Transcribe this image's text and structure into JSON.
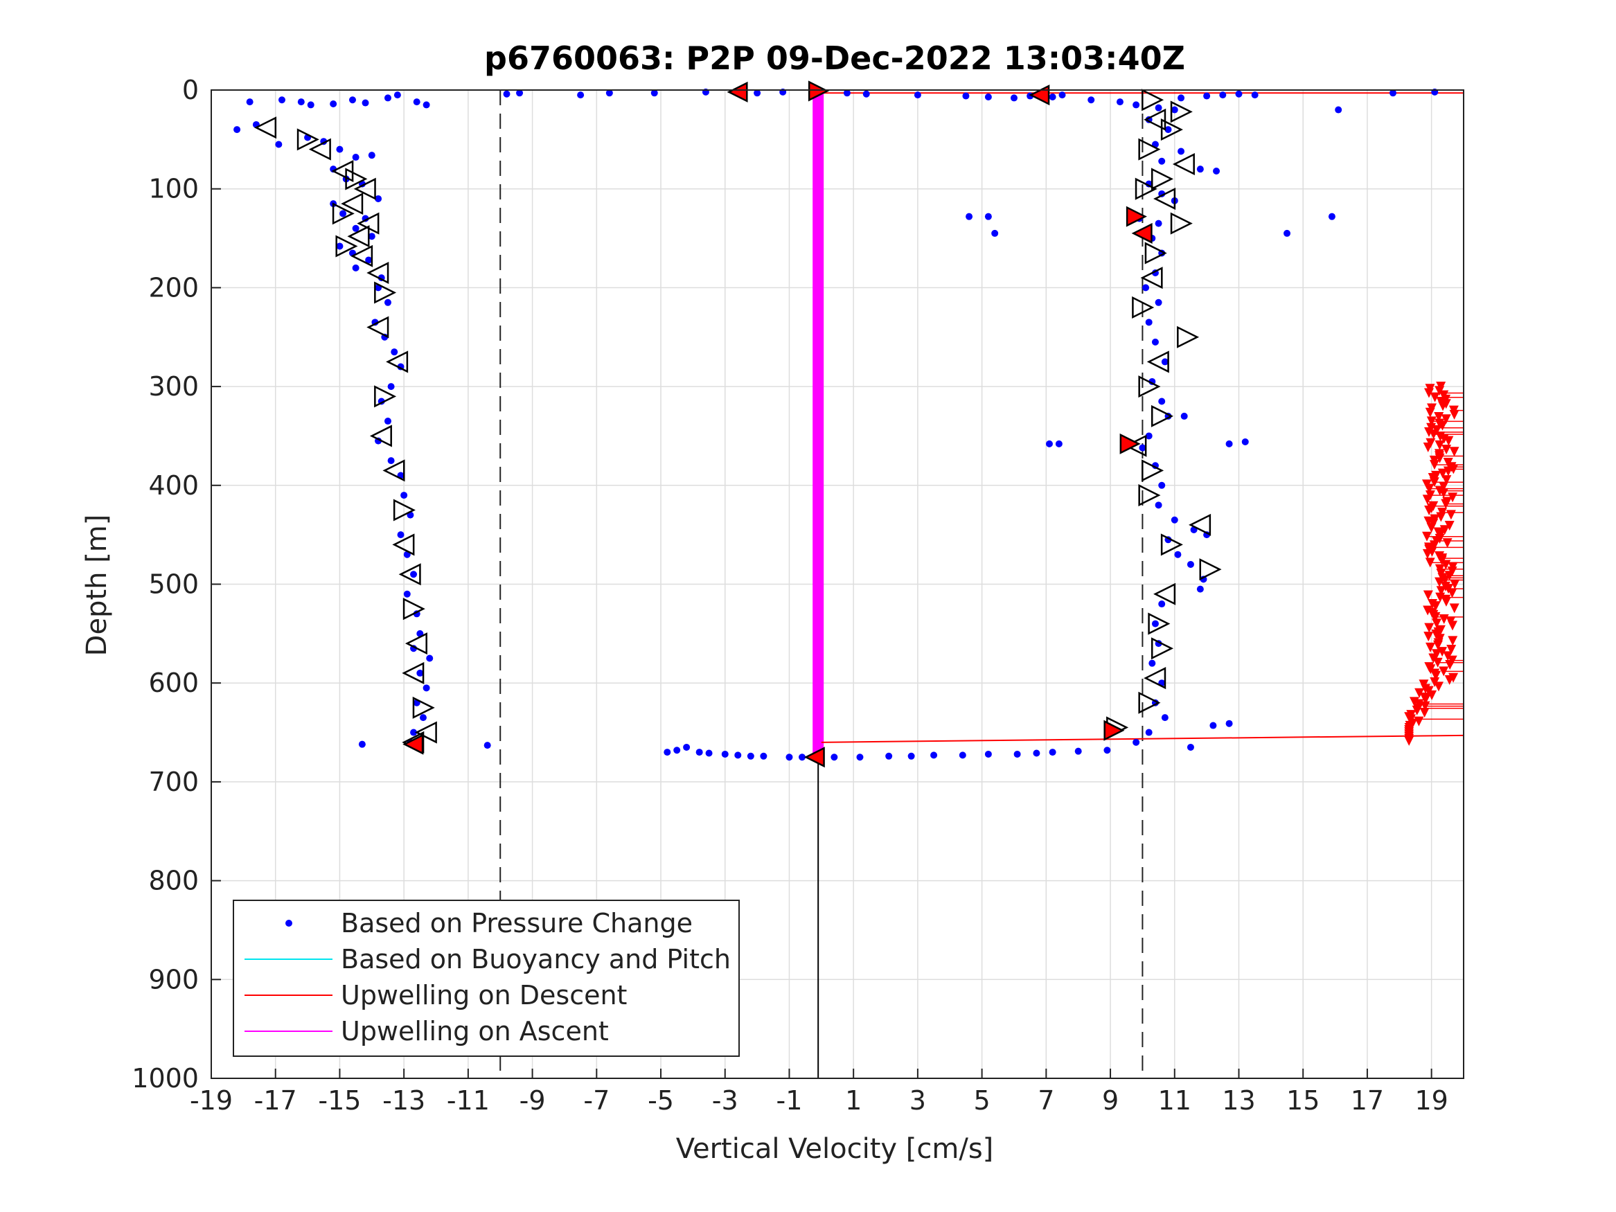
{
  "chart_data": {
    "type": "scatter",
    "title": "p6760063: P2P 09-Dec-2022 13:03:40Z",
    "xlabel": "Vertical Velocity [cm/s]",
    "ylabel": "Depth [m]",
    "xlim": [
      -19,
      20
    ],
    "ylim": [
      0,
      1000
    ],
    "y_reversed": true,
    "grid": true,
    "xticks": [
      -19,
      -17,
      -15,
      -13,
      -11,
      -9,
      -7,
      -5,
      -3,
      -1,
      1,
      3,
      5,
      7,
      9,
      11,
      13,
      15,
      17,
      19
    ],
    "yticks": [
      0,
      100,
      200,
      300,
      400,
      500,
      600,
      700,
      800,
      900,
      1000
    ],
    "legend": {
      "placement": "bottom-left",
      "entries": [
        {
          "label": "Based on Pressure Change",
          "color": "#0000ff",
          "marker": "dot"
        },
        {
          "label": "Based on Buoyancy and Pitch",
          "color": "#00e5ee",
          "marker": "line"
        },
        {
          "label": "Upwelling on Descent",
          "color": "#ff0000",
          "marker": "line"
        },
        {
          "label": "Upwelling on Ascent",
          "color": "#ff00ff",
          "marker": "line"
        }
      ]
    },
    "reference_lines": {
      "dashed_x": [
        -10,
        10
      ],
      "ascent_upwelling_x": -0.1,
      "ascent_upwelling_depth": [
        0,
        675
      ],
      "solid_vertical_x": -0.1,
      "solid_vertical_depth": [
        675,
        1000
      ],
      "descent_upwelling_depth": [
        3,
        660
      ],
      "descent_upwelling_x_range": [
        0,
        20
      ]
    },
    "pressure_change_descent": [
      [
        -18.2,
        40
      ],
      [
        -17.6,
        35
      ],
      [
        -17.8,
        12
      ],
      [
        -16.8,
        10
      ],
      [
        -16.2,
        12
      ],
      [
        -15.9,
        15
      ],
      [
        -15.2,
        14
      ],
      [
        -14.6,
        10
      ],
      [
        -14.2,
        13
      ],
      [
        -13.5,
        8
      ],
      [
        -13.2,
        5
      ],
      [
        -12.6,
        12
      ],
      [
        -12.3,
        15
      ],
      [
        -16.9,
        55
      ],
      [
        -16.0,
        48
      ],
      [
        -15.5,
        52
      ],
      [
        -15.0,
        60
      ],
      [
        -14.5,
        68
      ],
      [
        -14.0,
        66
      ],
      [
        -15.2,
        80
      ],
      [
        -14.8,
        90
      ],
      [
        -14.3,
        95
      ],
      [
        -13.8,
        110
      ],
      [
        -15.2,
        115
      ],
      [
        -14.9,
        125
      ],
      [
        -14.2,
        130
      ],
      [
        -14.5,
        140
      ],
      [
        -14.0,
        148
      ],
      [
        -15.0,
        158
      ],
      [
        -14.6,
        165
      ],
      [
        -14.1,
        172
      ],
      [
        -14.5,
        180
      ],
      [
        -13.7,
        190
      ],
      [
        -13.8,
        200
      ],
      [
        -13.5,
        215
      ],
      [
        -13.9,
        235
      ],
      [
        -13.6,
        250
      ],
      [
        -13.3,
        265
      ],
      [
        -13.1,
        280
      ],
      [
        -13.4,
        300
      ],
      [
        -13.7,
        315
      ],
      [
        -13.5,
        335
      ],
      [
        -13.8,
        355
      ],
      [
        -13.4,
        375
      ],
      [
        -13.1,
        390
      ],
      [
        -13.0,
        410
      ],
      [
        -12.8,
        430
      ],
      [
        -13.1,
        450
      ],
      [
        -12.9,
        470
      ],
      [
        -12.7,
        490
      ],
      [
        -12.9,
        510
      ],
      [
        -12.6,
        530
      ],
      [
        -12.5,
        550
      ],
      [
        -12.7,
        565
      ],
      [
        -12.2,
        575
      ],
      [
        -12.5,
        590
      ],
      [
        -12.3,
        605
      ],
      [
        -12.6,
        620
      ],
      [
        -12.4,
        635
      ],
      [
        -12.7,
        650
      ],
      [
        -12.8,
        660
      ],
      [
        -14.3,
        662
      ],
      [
        -10.4,
        663
      ]
    ],
    "pressure_change_ascent": [
      [
        -9.8,
        4
      ],
      [
        -9.4,
        3
      ],
      [
        -7.5,
        5
      ],
      [
        -6.6,
        3
      ],
      [
        -5.2,
        3
      ],
      [
        -3.6,
        2
      ],
      [
        -2.0,
        3
      ],
      [
        -1.2,
        2
      ],
      [
        0.8,
        3
      ],
      [
        1.4,
        4
      ],
      [
        3.0,
        5
      ],
      [
        4.5,
        6
      ],
      [
        5.2,
        7
      ],
      [
        6.0,
        8
      ],
      [
        7.2,
        7
      ],
      [
        8.4,
        10
      ],
      [
        9.3,
        12
      ],
      [
        9.8,
        15
      ],
      [
        10.5,
        18
      ],
      [
        11.0,
        20
      ],
      [
        10.2,
        30
      ],
      [
        10.8,
        40
      ],
      [
        10.4,
        55
      ],
      [
        11.2,
        62
      ],
      [
        10.6,
        72
      ],
      [
        11.8,
        80
      ],
      [
        12.3,
        82
      ],
      [
        10.2,
        95
      ],
      [
        10.6,
        105
      ],
      [
        11.0,
        112
      ],
      [
        9.9,
        130
      ],
      [
        10.5,
        135
      ],
      [
        10.3,
        150
      ],
      [
        10.6,
        165
      ],
      [
        10.4,
        185
      ],
      [
        10.1,
        200
      ],
      [
        10.5,
        215
      ],
      [
        10.2,
        235
      ],
      [
        10.4,
        255
      ],
      [
        10.7,
        275
      ],
      [
        10.3,
        295
      ],
      [
        10.6,
        315
      ],
      [
        10.8,
        330
      ],
      [
        11.3,
        330
      ],
      [
        10.2,
        350
      ],
      [
        10.0,
        362
      ],
      [
        10.4,
        380
      ],
      [
        10.6,
        400
      ],
      [
        10.5,
        420
      ],
      [
        11.0,
        435
      ],
      [
        11.6,
        445
      ],
      [
        12.0,
        450
      ],
      [
        10.8,
        455
      ],
      [
        11.1,
        470
      ],
      [
        11.5,
        480
      ],
      [
        11.9,
        495
      ],
      [
        11.8,
        505
      ],
      [
        10.6,
        520
      ],
      [
        10.4,
        540
      ],
      [
        10.5,
        560
      ],
      [
        10.3,
        580
      ],
      [
        10.6,
        600
      ],
      [
        10.4,
        620
      ],
      [
        10.7,
        635
      ],
      [
        10.2,
        650
      ],
      [
        9.8,
        660
      ],
      [
        11.5,
        665
      ],
      [
        12.2,
        643
      ],
      [
        12.7,
        641
      ],
      [
        4.6,
        128
      ],
      [
        5.2,
        128
      ],
      [
        5.4,
        145
      ],
      [
        7.1,
        358
      ],
      [
        7.4,
        358
      ],
      [
        12.7,
        358
      ],
      [
        13.2,
        356
      ],
      [
        14.5,
        145
      ],
      [
        15.9,
        128
      ],
      [
        16.1,
        20
      ],
      [
        17.8,
        3
      ],
      [
        19.1,
        2
      ],
      [
        11.2,
        8
      ],
      [
        12.0,
        6
      ],
      [
        12.5,
        5
      ],
      [
        13.0,
        4
      ],
      [
        13.5,
        5
      ],
      [
        7.5,
        5
      ],
      [
        6.5,
        6
      ],
      [
        -4.8,
        670
      ],
      [
        -4.5,
        668
      ],
      [
        -4.2,
        665
      ],
      [
        -3.8,
        670
      ],
      [
        -3.5,
        671
      ],
      [
        -3.0,
        672
      ],
      [
        -2.6,
        673
      ],
      [
        -2.2,
        674
      ],
      [
        -1.8,
        674
      ],
      [
        -1.0,
        675
      ],
      [
        -0.6,
        675
      ],
      [
        0.4,
        675
      ],
      [
        1.2,
        675
      ],
      [
        2.1,
        674
      ],
      [
        2.8,
        674
      ],
      [
        3.5,
        673
      ],
      [
        4.4,
        673
      ],
      [
        5.2,
        672
      ],
      [
        6.1,
        672
      ],
      [
        6.7,
        671
      ],
      [
        7.2,
        670
      ],
      [
        8.0,
        669
      ],
      [
        8.9,
        668
      ]
    ],
    "triangle_markers": [
      [
        -17.3,
        38
      ],
      [
        -16.0,
        50
      ],
      [
        -15.6,
        60
      ],
      [
        -14.9,
        82
      ],
      [
        -14.5,
        90
      ],
      [
        -14.2,
        100
      ],
      [
        -14.6,
        115
      ],
      [
        -14.9,
        125
      ],
      [
        -14.1,
        135
      ],
      [
        -14.4,
        148
      ],
      [
        -14.8,
        158
      ],
      [
        -14.3,
        168
      ],
      [
        -13.8,
        185
      ],
      [
        -13.6,
        205
      ],
      [
        -13.8,
        240
      ],
      [
        -13.2,
        275
      ],
      [
        -13.6,
        310
      ],
      [
        -13.7,
        350
      ],
      [
        -13.3,
        385
      ],
      [
        -13.0,
        425
      ],
      [
        -13.0,
        460
      ],
      [
        -12.8,
        490
      ],
      [
        -12.7,
        525
      ],
      [
        -12.6,
        560
      ],
      [
        -12.7,
        590
      ],
      [
        -12.4,
        625
      ],
      [
        -12.3,
        650
      ],
      [
        -12.7,
        660
      ],
      [
        10.3,
        10
      ],
      [
        11.2,
        22
      ],
      [
        10.4,
        30
      ],
      [
        10.9,
        40
      ],
      [
        10.2,
        60
      ],
      [
        11.3,
        75
      ],
      [
        10.6,
        90
      ],
      [
        10.1,
        100
      ],
      [
        10.7,
        110
      ],
      [
        11.2,
        135
      ],
      [
        10.4,
        165
      ],
      [
        10.3,
        190
      ],
      [
        10.0,
        220
      ],
      [
        11.4,
        250
      ],
      [
        10.5,
        275
      ],
      [
        10.2,
        300
      ],
      [
        10.6,
        330
      ],
      [
        9.8,
        360
      ],
      [
        10.3,
        385
      ],
      [
        10.2,
        410
      ],
      [
        11.8,
        440
      ],
      [
        10.9,
        460
      ],
      [
        12.1,
        485
      ],
      [
        10.7,
        510
      ],
      [
        10.5,
        540
      ],
      [
        10.6,
        565
      ],
      [
        10.4,
        595
      ],
      [
        10.2,
        620
      ],
      [
        9.2,
        645
      ]
    ],
    "red_markers": [
      [
        -2.6,
        2
      ],
      [
        -0.1,
        1
      ],
      [
        6.8,
        5
      ],
      [
        9.8,
        128
      ],
      [
        10.0,
        145
      ],
      [
        9.6,
        358
      ],
      [
        -12.7,
        662
      ],
      [
        9.1,
        648
      ],
      [
        -0.2,
        675
      ]
    ],
    "upwelling_descent_markers_range": {
      "x": [
        18.3,
        20
      ],
      "depth": [
        300,
        660
      ]
    }
  }
}
